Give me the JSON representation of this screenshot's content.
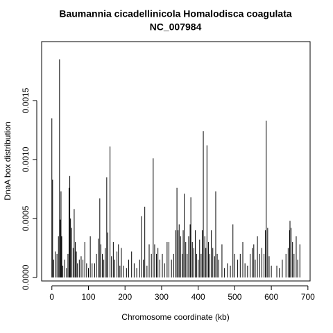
{
  "chart_data": {
    "type": "spike",
    "title": "Baumannia cicadellinicola Homalodisca coagulata",
    "subtitle": "NC_007984",
    "x_label": "Chromosome coordinate (kb)",
    "y_label": "DnaA box distribution",
    "color": "#000000",
    "xlim": [
      -28,
      706
    ],
    "ylim": [
      -3e-05,
      0.002
    ],
    "xticks": [
      0,
      100,
      200,
      300,
      400,
      500,
      600,
      700
    ],
    "yticks": [
      {
        "value": 0,
        "label": "0.0000"
      },
      {
        "value": 0.0005,
        "label": "0.0005"
      },
      {
        "value": 0.001,
        "label": "0.0010"
      },
      {
        "value": 0.0015,
        "label": "0.0015"
      }
    ],
    "x": [
      0,
      2,
      5,
      9,
      14,
      18,
      21,
      23,
      25,
      27,
      30,
      35,
      40,
      44,
      47,
      49,
      51,
      54,
      58,
      61,
      64,
      67,
      70,
      75,
      80,
      85,
      90,
      95,
      100,
      105,
      110,
      117,
      122,
      127,
      131,
      134,
      138,
      142,
      146,
      150,
      153,
      159,
      163,
      168,
      172,
      178,
      182,
      186,
      190,
      196,
      204,
      210,
      218,
      225,
      232,
      240,
      245,
      250,
      254,
      260,
      266,
      272,
      277,
      281,
      286,
      290,
      295,
      302,
      308,
      315,
      320,
      327,
      333,
      338,
      342,
      345,
      348,
      352,
      356,
      359,
      362,
      366,
      370,
      374,
      378,
      380,
      384,
      388,
      392,
      396,
      400,
      404,
      408,
      411,
      414,
      418,
      421,
      424,
      428,
      432,
      436,
      440,
      445,
      448,
      452,
      456,
      465,
      472,
      480,
      488,
      495,
      500,
      508,
      515,
      522,
      528,
      535,
      542,
      548,
      552,
      556,
      562,
      568,
      574,
      580,
      584,
      586,
      590,
      594,
      600,
      615,
      622,
      630,
      640,
      646,
      650,
      651,
      654,
      658,
      662,
      668,
      672,
      678
    ],
    "values": [
      0.00135,
      0.00083,
      0.00015,
      0.00022,
      0.0002,
      0.00035,
      0.00185,
      0.00049,
      0.00073,
      0.00035,
      0.0001,
      0.00015,
      8e-05,
      0.0002,
      0.00076,
      0.00086,
      0.0005,
      0.00042,
      0.00025,
      0.00058,
      0.0003,
      0.00022,
      0.00012,
      0.00015,
      0.00018,
      0.00015,
      0.0003,
      0.00012,
      8e-05,
      0.00035,
      0.00012,
      0.00012,
      0.0002,
      0.00033,
      0.00067,
      0.00028,
      0.0002,
      0.00015,
      0.00025,
      0.00085,
      0.00038,
      0.00111,
      0.00018,
      0.0003,
      0.00015,
      0.00022,
      0.00028,
      0.0001,
      0.00025,
      0.0001,
      8e-05,
      0.00015,
      0.00022,
      0.00012,
      8e-05,
      0.00015,
      0.00052,
      0.00015,
      0.0006,
      0.0001,
      0.00028,
      0.0002,
      0.00101,
      0.00028,
      0.0002,
      0.00025,
      0.00015,
      0.0002,
      0.00012,
      0.0003,
      0.0003,
      0.00015,
      0.0002,
      0.0004,
      0.00076,
      0.0004,
      0.00045,
      0.00035,
      0.0002,
      0.0004,
      0.00071,
      0.0003,
      0.0002,
      0.00035,
      0.00045,
      0.00068,
      0.0003,
      0.00025,
      0.0004,
      0.0002,
      0.00015,
      0.00032,
      0.0002,
      0.0004,
      0.00124,
      0.00035,
      0.00025,
      0.00112,
      0.0003,
      0.0002,
      0.0004,
      0.00025,
      0.00018,
      0.00073,
      0.0002,
      0.00015,
      0.00028,
      8e-05,
      0.00012,
      0.0001,
      0.00045,
      0.0002,
      0.00015,
      0.0002,
      0.0003,
      0.00012,
      0.0001,
      0.0002,
      0.00025,
      0.00028,
      0.00015,
      0.00035,
      0.0002,
      0.00025,
      0.0002,
      0.0004,
      0.00133,
      0.00042,
      0.00018,
      0.0001,
      0.0001,
      8e-05,
      0.00015,
      0.0002,
      0.00025,
      0.0004,
      0.00048,
      0.00042,
      0.0003,
      0.0002,
      0.00035,
      0.00015,
      0.00028
    ]
  }
}
